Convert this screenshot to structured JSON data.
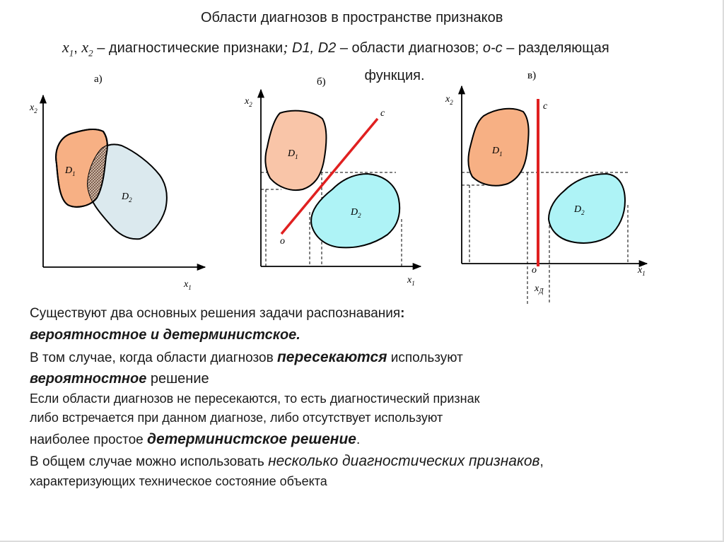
{
  "header": {
    "title": "Области диагнозов в пространстве признаков",
    "x1": "x",
    "x1_sub": "1",
    "x2": "x",
    "x2_sub": "2",
    "subtitle_a": " – диагностические признаки",
    "subtitle_sep": "; ",
    "d_names": "D1, D2",
    "subtitle_b": " – области диагнозов; ",
    "oc": "o-c",
    "subtitle_c": " – разделяющая",
    "subtitle_d": "функция."
  },
  "diagrams": {
    "a": {
      "label": "а)",
      "ax_y": "x",
      "ax_y_sub": "2",
      "ax_x": "x",
      "ax_x_sub": "1",
      "region1": "D",
      "region1_sub": "1",
      "region2": "D",
      "region2_sub": "2"
    },
    "b": {
      "label": "б)",
      "ax_y": "x",
      "ax_y_sub": "2",
      "ax_x": "x",
      "ax_x_sub": "1",
      "region1": "D",
      "region1_sub": "1",
      "region2": "D",
      "region2_sub": "2",
      "line_start": "o",
      "line_end": "c"
    },
    "c": {
      "label": "в)",
      "ax_y": "x",
      "ax_y_sub": "2",
      "ax_x": "x",
      "ax_x_sub": "1",
      "region1": "D",
      "region1_sub": "1",
      "region2": "D",
      "region2_sub": "2",
      "line_start": "o",
      "line_end": "c",
      "threshold": "x",
      "threshold_sub": "Д"
    }
  },
  "colors": {
    "d1_fill": "#f7b084",
    "d1_fill_b": "#f9c5a8",
    "d2_fill": "#dbe9ee",
    "d2_fill_bc": "#aef3f6",
    "divider": "#e02020"
  },
  "text": {
    "line1": "Существуют два основных решения задачи распознавания",
    "line1_colon": ":",
    "line2": "вероятностное и детерминистское.",
    "line3_a": "В том случае, когда области диагнозов  ",
    "line3_hl": "пересекаются",
    "line3_b": " используют",
    "line4_hl": "вероятностное",
    "line4_b": " решение",
    "line5": "Если области диагнозов  не пересекаются, то есть диагностический признак",
    "line6": "либо встречается при данном диагнозе, либо отсутствует используют",
    "line7_a": "наиболее простое ",
    "line7_hl": "детерминистское решение",
    "line7_b": ".",
    "line8_a": "В общем случае можно использовать ",
    "line8_hl": "несколько диагностических признаков",
    "line8_b": ",",
    "line9": "характеризующих техническое состояние объекта"
  }
}
